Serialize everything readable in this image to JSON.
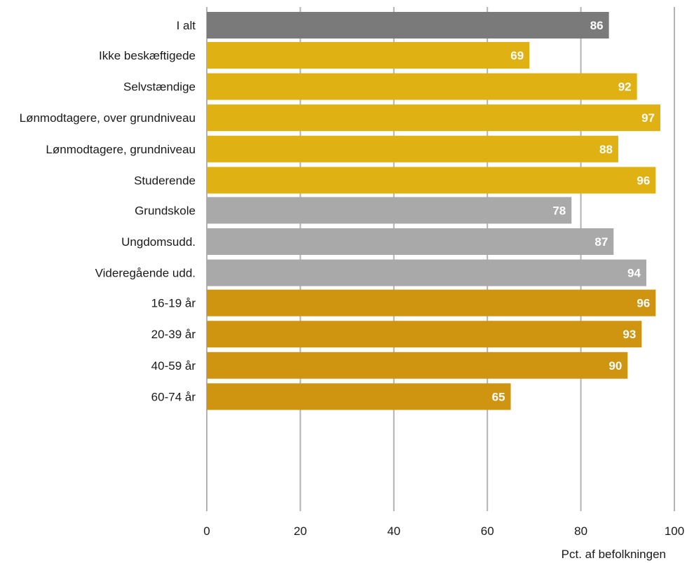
{
  "chart_data": {
    "type": "bar",
    "orientation": "horizontal",
    "xlabel": "Pct. af befolkningen",
    "xlim": [
      0,
      100
    ],
    "xticks": [
      0,
      20,
      40,
      60,
      80,
      100
    ],
    "grid": true,
    "groups": [
      {
        "color": "#7a7a7a",
        "bars": [
          {
            "category": "I alt",
            "value": 86
          }
        ]
      },
      {
        "color": "#e0b113",
        "bars": [
          {
            "category": "Ikke beskæftigede",
            "value": 69
          },
          {
            "category": "Selvstændige",
            "value": 92
          },
          {
            "category": "Lønmodtagere, over grundniveau",
            "value": 97
          },
          {
            "category": "Lønmodtagere, grundniveau",
            "value": 88
          },
          {
            "category": "Studerende",
            "value": 96
          }
        ]
      },
      {
        "color": "#a9a9a9",
        "bars": [
          {
            "category": "Grundskole",
            "value": 78
          },
          {
            "category": "Ungdomsudd.",
            "value": 87
          },
          {
            "category": "Videregående udd.",
            "value": 94
          }
        ]
      },
      {
        "color": "#cf9410",
        "bars": [
          {
            "category": "16-19 år",
            "value": 96
          },
          {
            "category": "20-39 år",
            "value": 93
          },
          {
            "category": "40-59 år",
            "value": 90
          },
          {
            "category": "60-74 år",
            "value": 65
          }
        ]
      }
    ]
  }
}
